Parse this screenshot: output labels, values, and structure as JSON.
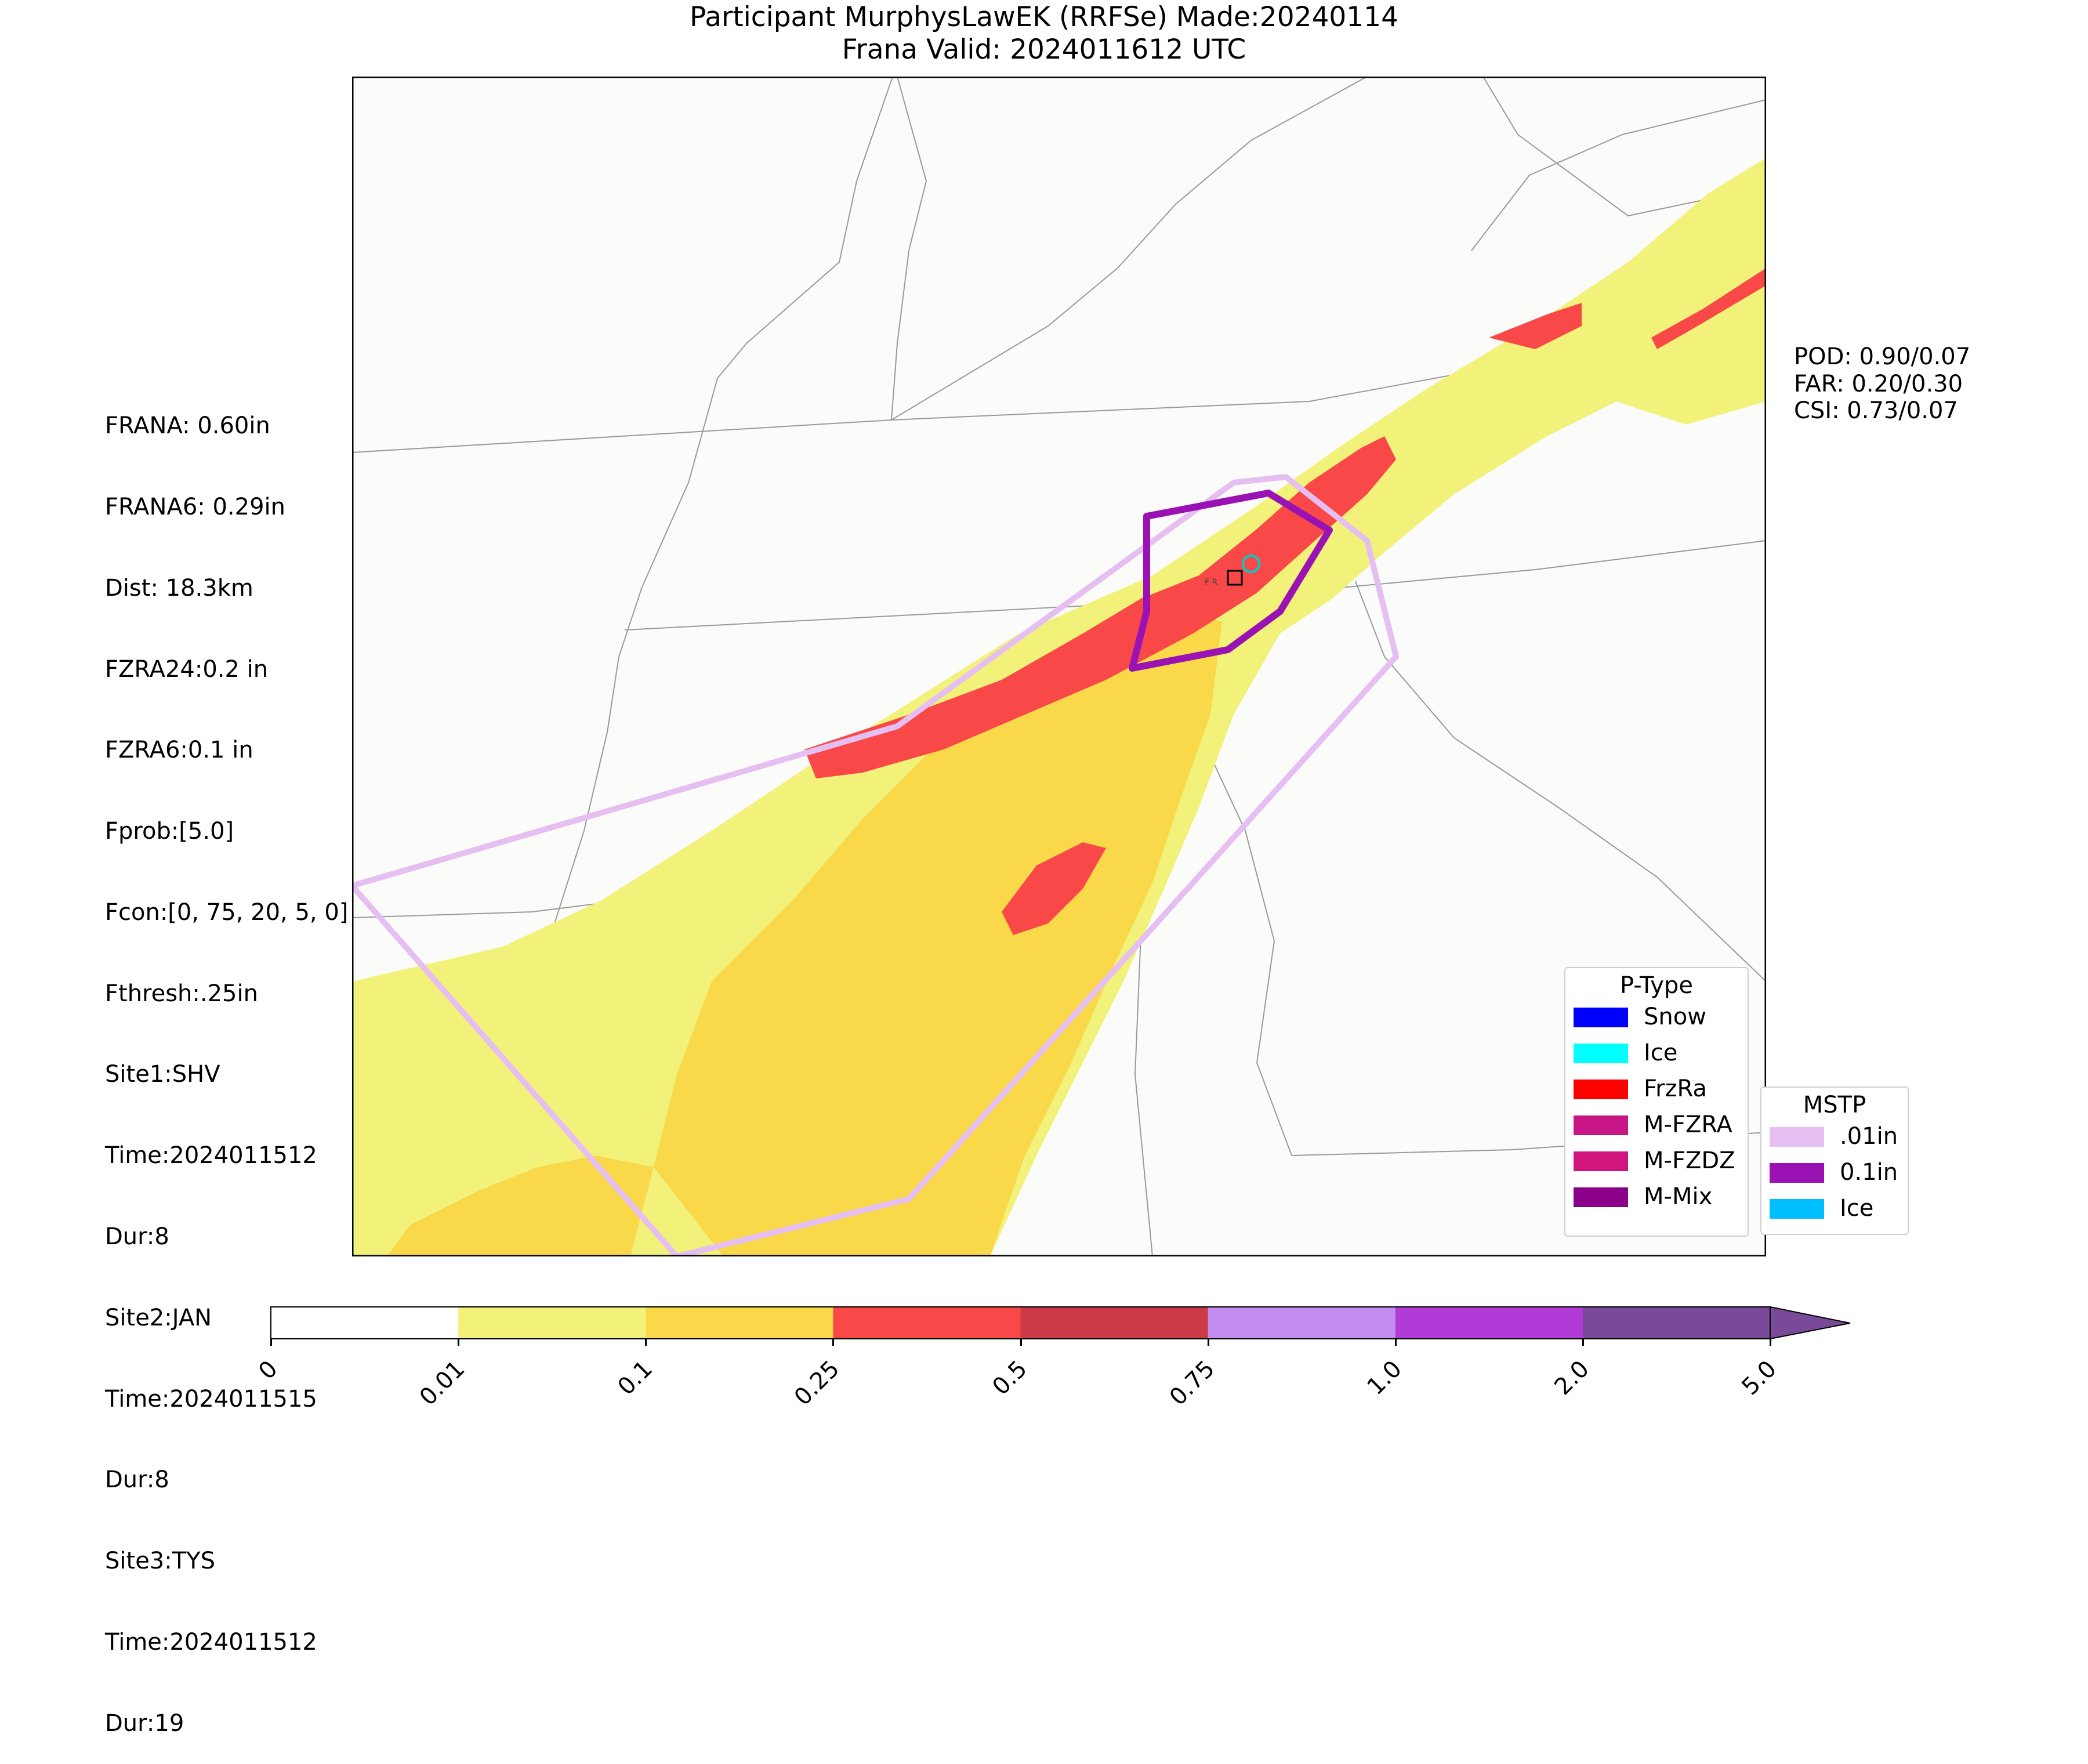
{
  "title": {
    "line1": "Participant MurphysLawEK (RRFSe) Made:20240114",
    "line2": "Frana Valid: 2024011612 UTC"
  },
  "left_stats": [
    "FRANA: 0.60in",
    "FRANA6: 0.29in",
    "Dist: 18.3km",
    "FZRA24:0.2 in",
    "FZRA6:0.1 in",
    "Fprob:[5.0]",
    "Fcon:[0, 75, 20, 5, 0]",
    "Fthresh:.25in",
    "Site1:SHV",
    "Time:2024011512",
    "Dur:8",
    "Site2:JAN",
    "Time:2024011515",
    "Dur:8",
    "Site3:TYS",
    "Time:2024011512",
    "Dur:19"
  ],
  "right_stats": [
    "POD: 0.90/0.07",
    "FAR: 0.20/0.30",
    "CSI: 0.73/0.07"
  ],
  "ptype_legend": {
    "title": "P-Type",
    "items": [
      {
        "label": "Snow",
        "color": "#0000ff"
      },
      {
        "label": "Ice",
        "color": "#00ffff"
      },
      {
        "label": "FrzRa",
        "color": "#ff0000"
      },
      {
        "label": "M-FZRA",
        "color": "#c71585"
      },
      {
        "label": "M-FZDZ",
        "color": "#d0157f"
      },
      {
        "label": "M-Mix",
        "color": "#8b008b"
      }
    ]
  },
  "mstp_legend": {
    "title": "MSTP",
    "items": [
      {
        "label": ".01in",
        "color": "#e6bff2"
      },
      {
        "label": "0.1in",
        "color": "#9a12b3"
      },
      {
        "label": "Ice",
        "color": "#00bfff"
      }
    ]
  },
  "colorbar": {
    "ticks": [
      "0",
      "0.01",
      "0.1",
      "0.25",
      "0.5",
      "0.75",
      "1.0",
      "2.0",
      "5.0"
    ],
    "colors": [
      "#ffffff",
      "#f2f27a",
      "#f9d84a",
      "#f94848",
      "#cc3a48",
      "#c48cf0",
      "#b23ad6",
      "#7a4a99"
    ]
  },
  "map_labels": {
    "site_label": "F R"
  }
}
